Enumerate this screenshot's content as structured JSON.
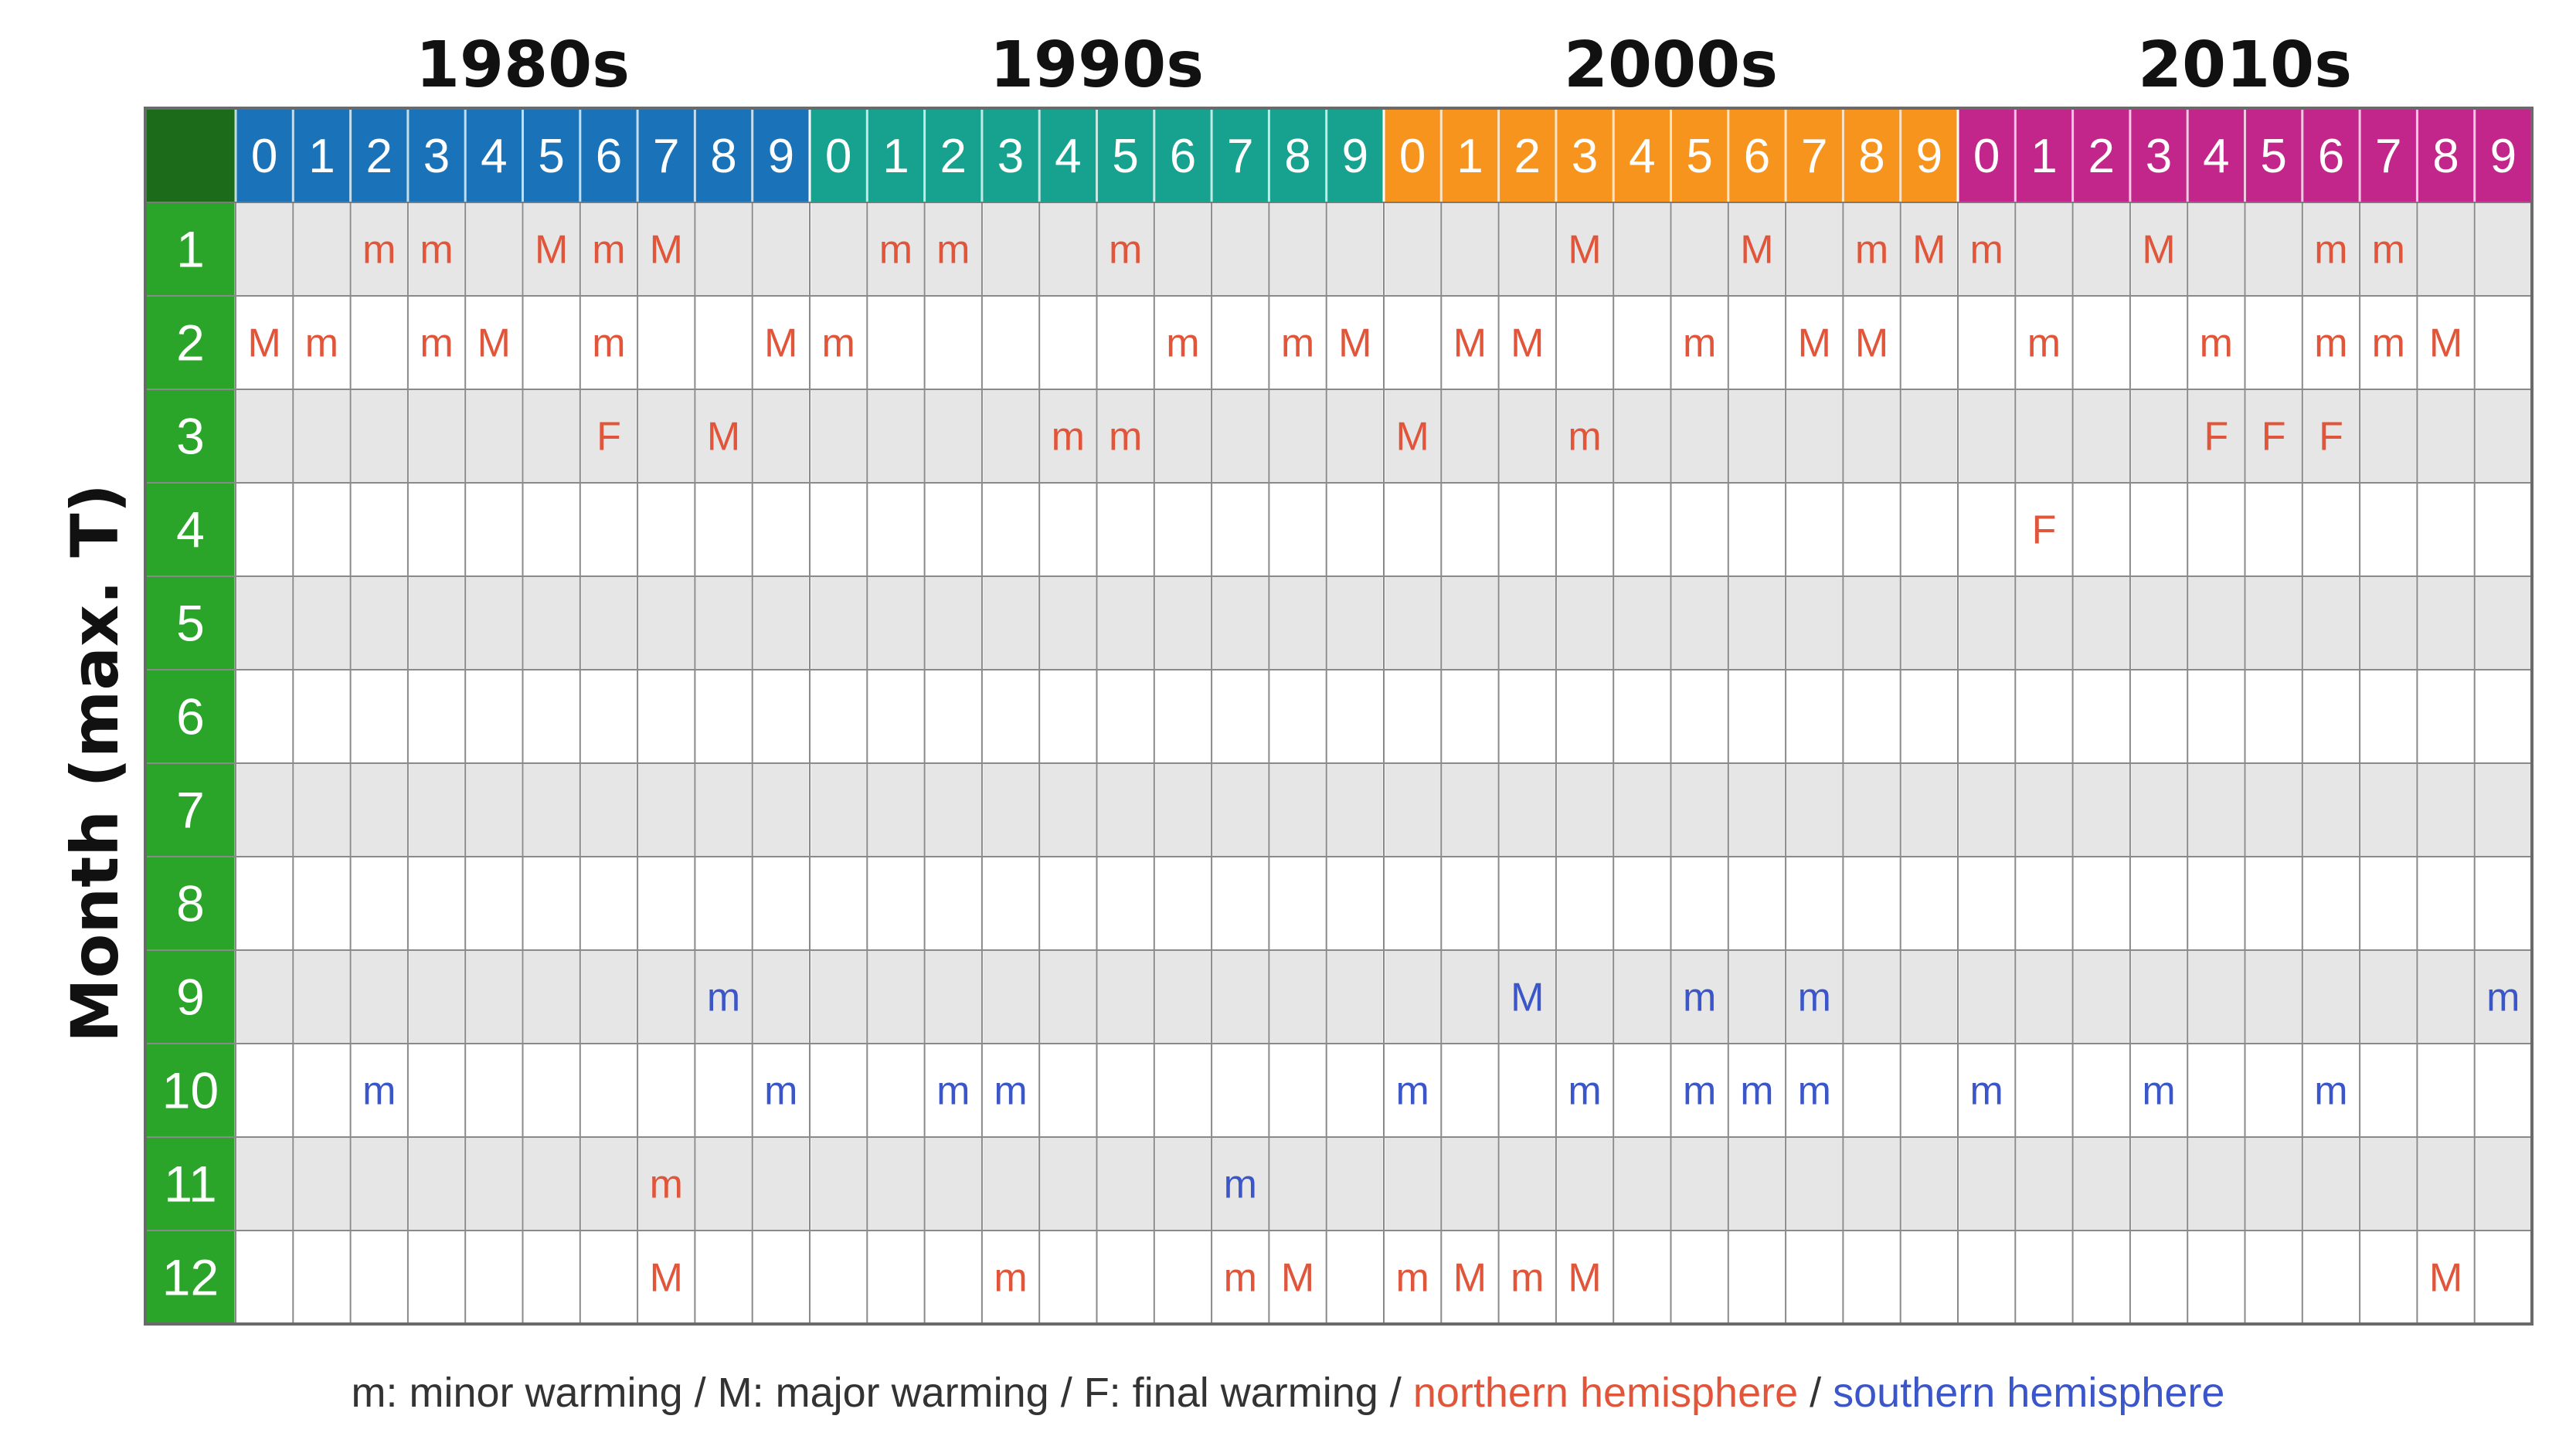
{
  "chart_data": {
    "type": "table",
    "ylabel": "Month (max. T)",
    "decades": [
      {
        "label": "1980s",
        "color": "#1a73b8"
      },
      {
        "label": "1990s",
        "color": "#16a28e"
      },
      {
        "label": "2000s",
        "color": "#f7941d"
      },
      {
        "label": "2010s",
        "color": "#c2268a"
      }
    ],
    "year_digits": [
      "0",
      "1",
      "2",
      "3",
      "4",
      "5",
      "6",
      "7",
      "8",
      "9"
    ],
    "months": [
      "1",
      "2",
      "3",
      "4",
      "5",
      "6",
      "7",
      "8",
      "9",
      "10",
      "11",
      "12"
    ],
    "colors": {
      "northern": "#e1563a",
      "southern": "#3b56c8",
      "month_column": "#2aa52a",
      "corner": "#1b6b1b",
      "row_shade": "#e6e6e6",
      "grid": "#8a8a8a"
    },
    "events": [
      {
        "year": 1982,
        "month": 1,
        "type": "m",
        "hemisphere": "N"
      },
      {
        "year": 1983,
        "month": 1,
        "type": "m",
        "hemisphere": "N"
      },
      {
        "year": 1985,
        "month": 1,
        "type": "M",
        "hemisphere": "N"
      },
      {
        "year": 1986,
        "month": 1,
        "type": "m",
        "hemisphere": "N"
      },
      {
        "year": 1987,
        "month": 1,
        "type": "M",
        "hemisphere": "N"
      },
      {
        "year": 1991,
        "month": 1,
        "type": "m",
        "hemisphere": "N"
      },
      {
        "year": 1992,
        "month": 1,
        "type": "m",
        "hemisphere": "N"
      },
      {
        "year": 1995,
        "month": 1,
        "type": "m",
        "hemisphere": "N"
      },
      {
        "year": 2003,
        "month": 1,
        "type": "M",
        "hemisphere": "N"
      },
      {
        "year": 2006,
        "month": 1,
        "type": "M",
        "hemisphere": "N"
      },
      {
        "year": 2008,
        "month": 1,
        "type": "m",
        "hemisphere": "N"
      },
      {
        "year": 2009,
        "month": 1,
        "type": "M",
        "hemisphere": "N"
      },
      {
        "year": 2010,
        "month": 1,
        "type": "m",
        "hemisphere": "N"
      },
      {
        "year": 2013,
        "month": 1,
        "type": "M",
        "hemisphere": "N"
      },
      {
        "year": 2016,
        "month": 1,
        "type": "m",
        "hemisphere": "N"
      },
      {
        "year": 2017,
        "month": 1,
        "type": "m",
        "hemisphere": "N"
      },
      {
        "year": 1980,
        "month": 2,
        "type": "M",
        "hemisphere": "N"
      },
      {
        "year": 1981,
        "month": 2,
        "type": "m",
        "hemisphere": "N"
      },
      {
        "year": 1983,
        "month": 2,
        "type": "m",
        "hemisphere": "N"
      },
      {
        "year": 1984,
        "month": 2,
        "type": "M",
        "hemisphere": "N"
      },
      {
        "year": 1986,
        "month": 2,
        "type": "m",
        "hemisphere": "N"
      },
      {
        "year": 1989,
        "month": 2,
        "type": "M",
        "hemisphere": "N"
      },
      {
        "year": 1990,
        "month": 2,
        "type": "m",
        "hemisphere": "N"
      },
      {
        "year": 1996,
        "month": 2,
        "type": "m",
        "hemisphere": "N"
      },
      {
        "year": 1998,
        "month": 2,
        "type": "m",
        "hemisphere": "N"
      },
      {
        "year": 1999,
        "month": 2,
        "type": "M",
        "hemisphere": "N"
      },
      {
        "year": 2001,
        "month": 2,
        "type": "M",
        "hemisphere": "N"
      },
      {
        "year": 2002,
        "month": 2,
        "type": "M",
        "hemisphere": "N"
      },
      {
        "year": 2005,
        "month": 2,
        "type": "m",
        "hemisphere": "N"
      },
      {
        "year": 2007,
        "month": 2,
        "type": "M",
        "hemisphere": "N"
      },
      {
        "year": 2008,
        "month": 2,
        "type": "M",
        "hemisphere": "N"
      },
      {
        "year": 2011,
        "month": 2,
        "type": "m",
        "hemisphere": "N"
      },
      {
        "year": 2014,
        "month": 2,
        "type": "m",
        "hemisphere": "N"
      },
      {
        "year": 2016,
        "month": 2,
        "type": "m",
        "hemisphere": "N"
      },
      {
        "year": 2017,
        "month": 2,
        "type": "m",
        "hemisphere": "N"
      },
      {
        "year": 2018,
        "month": 2,
        "type": "M",
        "hemisphere": "N"
      },
      {
        "year": 1986,
        "month": 3,
        "type": "F",
        "hemisphere": "N"
      },
      {
        "year": 1988,
        "month": 3,
        "type": "M",
        "hemisphere": "N"
      },
      {
        "year": 1994,
        "month": 3,
        "type": "m",
        "hemisphere": "N"
      },
      {
        "year": 1995,
        "month": 3,
        "type": "m",
        "hemisphere": "N"
      },
      {
        "year": 2000,
        "month": 3,
        "type": "M",
        "hemisphere": "N"
      },
      {
        "year": 2003,
        "month": 3,
        "type": "m",
        "hemisphere": "N"
      },
      {
        "year": 2014,
        "month": 3,
        "type": "F",
        "hemisphere": "N"
      },
      {
        "year": 2015,
        "month": 3,
        "type": "F",
        "hemisphere": "N"
      },
      {
        "year": 2016,
        "month": 3,
        "type": "F",
        "hemisphere": "N"
      },
      {
        "year": 2011,
        "month": 4,
        "type": "F",
        "hemisphere": "N"
      },
      {
        "year": 1988,
        "month": 9,
        "type": "m",
        "hemisphere": "S"
      },
      {
        "year": 2002,
        "month": 9,
        "type": "M",
        "hemisphere": "S"
      },
      {
        "year": 2005,
        "month": 9,
        "type": "m",
        "hemisphere": "S"
      },
      {
        "year": 2007,
        "month": 9,
        "type": "m",
        "hemisphere": "S"
      },
      {
        "year": 2019,
        "month": 9,
        "type": "m",
        "hemisphere": "S"
      },
      {
        "year": 1982,
        "month": 10,
        "type": "m",
        "hemisphere": "S"
      },
      {
        "year": 1989,
        "month": 10,
        "type": "m",
        "hemisphere": "S"
      },
      {
        "year": 1992,
        "month": 10,
        "type": "m",
        "hemisphere": "S"
      },
      {
        "year": 1993,
        "month": 10,
        "type": "m",
        "hemisphere": "S"
      },
      {
        "year": 2000,
        "month": 10,
        "type": "m",
        "hemisphere": "S"
      },
      {
        "year": 2003,
        "month": 10,
        "type": "m",
        "hemisphere": "S"
      },
      {
        "year": 2005,
        "month": 10,
        "type": "m",
        "hemisphere": "S"
      },
      {
        "year": 2006,
        "month": 10,
        "type": "m",
        "hemisphere": "S"
      },
      {
        "year": 2007,
        "month": 10,
        "type": "m",
        "hemisphere": "S"
      },
      {
        "year": 2010,
        "month": 10,
        "type": "m",
        "hemisphere": "S"
      },
      {
        "year": 2013,
        "month": 10,
        "type": "m",
        "hemisphere": "S"
      },
      {
        "year": 2016,
        "month": 10,
        "type": "m",
        "hemisphere": "S"
      },
      {
        "year": 1987,
        "month": 11,
        "type": "m",
        "hemisphere": "N"
      },
      {
        "year": 1997,
        "month": 11,
        "type": "m",
        "hemisphere": "S"
      },
      {
        "year": 1987,
        "month": 12,
        "type": "M",
        "hemisphere": "N"
      },
      {
        "year": 1993,
        "month": 12,
        "type": "m",
        "hemisphere": "N"
      },
      {
        "year": 1997,
        "month": 12,
        "type": "m",
        "hemisphere": "N"
      },
      {
        "year": 1998,
        "month": 12,
        "type": "M",
        "hemisphere": "N"
      },
      {
        "year": 2000,
        "month": 12,
        "type": "m",
        "hemisphere": "N"
      },
      {
        "year": 2001,
        "month": 12,
        "type": "M",
        "hemisphere": "N"
      },
      {
        "year": 2002,
        "month": 12,
        "type": "m",
        "hemisphere": "N"
      },
      {
        "year": 2003,
        "month": 12,
        "type": "M",
        "hemisphere": "N"
      },
      {
        "year": 2018,
        "month": 12,
        "type": "M",
        "hemisphere": "N"
      }
    ]
  },
  "legend": {
    "part1": "m: minor warming / M: major warming / F: final warming / ",
    "part2": "northern hemisphere",
    "part3": " / ",
    "part4": "southern hemisphere"
  }
}
